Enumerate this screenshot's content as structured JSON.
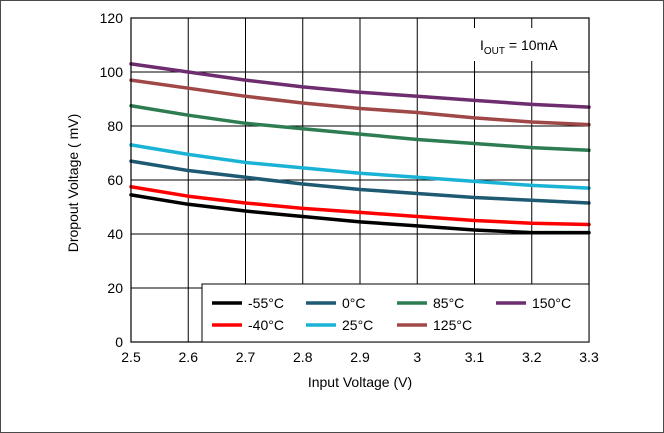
{
  "chart_data": {
    "type": "line",
    "xlabel": "Input Voltage (V)",
    "ylabel": "Dropout Voltage ( mV)",
    "xlim": [
      2.5,
      3.3
    ],
    "ylim": [
      0,
      120
    ],
    "xticks": [
      "2.5",
      "2.6",
      "2.7",
      "2.8",
      "2.9",
      "3",
      "3.1",
      "3.2",
      "3.3"
    ],
    "yticks": [
      "0",
      "20",
      "40",
      "60",
      "80",
      "100",
      "120"
    ],
    "grid": true,
    "legend_position": "bottom-right",
    "annotation": {
      "main": "I",
      "sub": "OUT",
      "suffix": " = 10mA"
    },
    "x": [
      2.5,
      2.6,
      2.7,
      2.8,
      2.9,
      3.0,
      3.1,
      3.2,
      3.3
    ],
    "series": [
      {
        "name": "-55°C",
        "color": "#000000",
        "values": [
          54.5,
          51,
          48.5,
          46.5,
          44.5,
          43,
          41.5,
          40.5,
          40.5
        ]
      },
      {
        "name": "-40°C",
        "color": "#ff0000",
        "values": [
          57.5,
          54,
          51.5,
          49.5,
          48,
          46.5,
          45,
          44,
          43.5
        ]
      },
      {
        "name": "0°C",
        "color": "#1f5a73",
        "values": [
          67,
          63.5,
          61,
          58.5,
          56.5,
          55,
          53.5,
          52.5,
          51.5
        ]
      },
      {
        "name": "25°C",
        "color": "#1ab3d6",
        "values": [
          73,
          69.5,
          66.5,
          64.5,
          62.5,
          61,
          59.5,
          58,
          57
        ]
      },
      {
        "name": "85°C",
        "color": "#2e7d52",
        "values": [
          87.5,
          84,
          81,
          79,
          77,
          75,
          73.5,
          72,
          71
        ]
      },
      {
        "name": "125°C",
        "color": "#a04848",
        "values": [
          97,
          94,
          91,
          88.5,
          86.5,
          85,
          83,
          81.5,
          80.5
        ]
      },
      {
        "name": "150°C",
        "color": "#6e2d6e",
        "values": [
          103,
          100,
          97,
          94.5,
          92.5,
          91,
          89.5,
          88,
          87
        ]
      }
    ]
  }
}
